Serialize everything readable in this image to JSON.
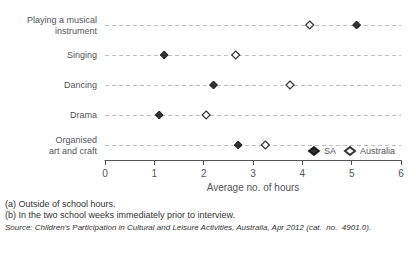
{
  "chart_data": {
    "type": "scatter",
    "orientation": "horizontal",
    "categories": [
      "Playing a musical\ninstrument",
      "Singing",
      "Dancing",
      "Drama",
      "Organised\nart and craft"
    ],
    "series": [
      {
        "name": "SA",
        "color": "#000000",
        "marker": "diamond",
        "values": [
          5.1,
          1.2,
          2.2,
          1.1,
          2.7
        ]
      },
      {
        "name": "Australia",
        "color": "#000000",
        "marker": "open_diamond",
        "values": [
          4.15,
          2.65,
          3.75,
          2.05,
          3.25
        ]
      }
    ],
    "xlabel": "Average no. of hours",
    "xlim": [
      0,
      6
    ],
    "xticks": [
      0,
      1,
      2,
      3,
      4,
      5,
      6
    ],
    "grid": true,
    "legend": "lower right",
    "annotations": [
      "(a) Outside of school hours.",
      "(b) In the two school weeks immediately prior to interview.",
      "Source: Children's Participation in Cultural and Leisure Activities, Australia, Apr 2012 (cat.  no.  4901.0)."
    ]
  }
}
